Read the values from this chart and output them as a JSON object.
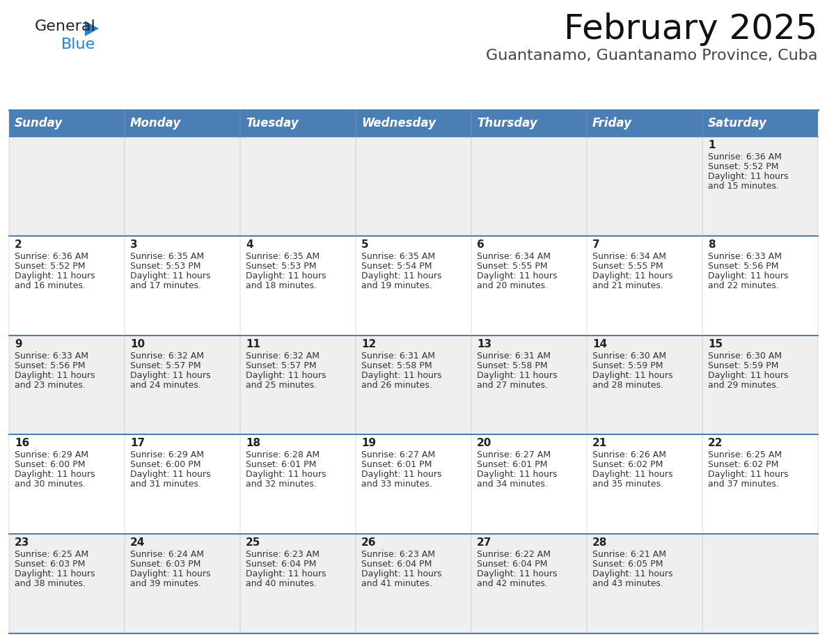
{
  "title": "February 2025",
  "subtitle": "Guantanamo, Guantanamo Province, Cuba",
  "header_bg": "#4a7eb5",
  "header_text": "#ffffff",
  "header_days": [
    "Sunday",
    "Monday",
    "Tuesday",
    "Wednesday",
    "Thursday",
    "Friday",
    "Saturday"
  ],
  "odd_row_bg": "#efefef",
  "even_row_bg": "#ffffff",
  "cell_text_color": "#333333",
  "day_num_color": "#222222",
  "line_color": "#4a7eb5",
  "logo_general_color": "#222222",
  "logo_blue_color": "#2a80c8",
  "title_fontsize": 36,
  "subtitle_fontsize": 16,
  "header_fontsize": 12,
  "day_num_fontsize": 11,
  "cell_fontsize": 9,
  "calendar_data": [
    {
      "day": 1,
      "col": 6,
      "row": 0,
      "sunrise": "6:36 AM",
      "sunset": "5:52 PM",
      "daylight": "11 hours and 15 minutes."
    },
    {
      "day": 2,
      "col": 0,
      "row": 1,
      "sunrise": "6:36 AM",
      "sunset": "5:52 PM",
      "daylight": "11 hours and 16 minutes."
    },
    {
      "day": 3,
      "col": 1,
      "row": 1,
      "sunrise": "6:35 AM",
      "sunset": "5:53 PM",
      "daylight": "11 hours and 17 minutes."
    },
    {
      "day": 4,
      "col": 2,
      "row": 1,
      "sunrise": "6:35 AM",
      "sunset": "5:53 PM",
      "daylight": "11 hours and 18 minutes."
    },
    {
      "day": 5,
      "col": 3,
      "row": 1,
      "sunrise": "6:35 AM",
      "sunset": "5:54 PM",
      "daylight": "11 hours and 19 minutes."
    },
    {
      "day": 6,
      "col": 4,
      "row": 1,
      "sunrise": "6:34 AM",
      "sunset": "5:55 PM",
      "daylight": "11 hours and 20 minutes."
    },
    {
      "day": 7,
      "col": 5,
      "row": 1,
      "sunrise": "6:34 AM",
      "sunset": "5:55 PM",
      "daylight": "11 hours and 21 minutes."
    },
    {
      "day": 8,
      "col": 6,
      "row": 1,
      "sunrise": "6:33 AM",
      "sunset": "5:56 PM",
      "daylight": "11 hours and 22 minutes."
    },
    {
      "day": 9,
      "col": 0,
      "row": 2,
      "sunrise": "6:33 AM",
      "sunset": "5:56 PM",
      "daylight": "11 hours and 23 minutes."
    },
    {
      "day": 10,
      "col": 1,
      "row": 2,
      "sunrise": "6:32 AM",
      "sunset": "5:57 PM",
      "daylight": "11 hours and 24 minutes."
    },
    {
      "day": 11,
      "col": 2,
      "row": 2,
      "sunrise": "6:32 AM",
      "sunset": "5:57 PM",
      "daylight": "11 hours and 25 minutes."
    },
    {
      "day": 12,
      "col": 3,
      "row": 2,
      "sunrise": "6:31 AM",
      "sunset": "5:58 PM",
      "daylight": "11 hours and 26 minutes."
    },
    {
      "day": 13,
      "col": 4,
      "row": 2,
      "sunrise": "6:31 AM",
      "sunset": "5:58 PM",
      "daylight": "11 hours and 27 minutes."
    },
    {
      "day": 14,
      "col": 5,
      "row": 2,
      "sunrise": "6:30 AM",
      "sunset": "5:59 PM",
      "daylight": "11 hours and 28 minutes."
    },
    {
      "day": 15,
      "col": 6,
      "row": 2,
      "sunrise": "6:30 AM",
      "sunset": "5:59 PM",
      "daylight": "11 hours and 29 minutes."
    },
    {
      "day": 16,
      "col": 0,
      "row": 3,
      "sunrise": "6:29 AM",
      "sunset": "6:00 PM",
      "daylight": "11 hours and 30 minutes."
    },
    {
      "day": 17,
      "col": 1,
      "row": 3,
      "sunrise": "6:29 AM",
      "sunset": "6:00 PM",
      "daylight": "11 hours and 31 minutes."
    },
    {
      "day": 18,
      "col": 2,
      "row": 3,
      "sunrise": "6:28 AM",
      "sunset": "6:01 PM",
      "daylight": "11 hours and 32 minutes."
    },
    {
      "day": 19,
      "col": 3,
      "row": 3,
      "sunrise": "6:27 AM",
      "sunset": "6:01 PM",
      "daylight": "11 hours and 33 minutes."
    },
    {
      "day": 20,
      "col": 4,
      "row": 3,
      "sunrise": "6:27 AM",
      "sunset": "6:01 PM",
      "daylight": "11 hours and 34 minutes."
    },
    {
      "day": 21,
      "col": 5,
      "row": 3,
      "sunrise": "6:26 AM",
      "sunset": "6:02 PM",
      "daylight": "11 hours and 35 minutes."
    },
    {
      "day": 22,
      "col": 6,
      "row": 3,
      "sunrise": "6:25 AM",
      "sunset": "6:02 PM",
      "daylight": "11 hours and 37 minutes."
    },
    {
      "day": 23,
      "col": 0,
      "row": 4,
      "sunrise": "6:25 AM",
      "sunset": "6:03 PM",
      "daylight": "11 hours and 38 minutes."
    },
    {
      "day": 24,
      "col": 1,
      "row": 4,
      "sunrise": "6:24 AM",
      "sunset": "6:03 PM",
      "daylight": "11 hours and 39 minutes."
    },
    {
      "day": 25,
      "col": 2,
      "row": 4,
      "sunrise": "6:23 AM",
      "sunset": "6:04 PM",
      "daylight": "11 hours and 40 minutes."
    },
    {
      "day": 26,
      "col": 3,
      "row": 4,
      "sunrise": "6:23 AM",
      "sunset": "6:04 PM",
      "daylight": "11 hours and 41 minutes."
    },
    {
      "day": 27,
      "col": 4,
      "row": 4,
      "sunrise": "6:22 AM",
      "sunset": "6:04 PM",
      "daylight": "11 hours and 42 minutes."
    },
    {
      "day": 28,
      "col": 5,
      "row": 4,
      "sunrise": "6:21 AM",
      "sunset": "6:05 PM",
      "daylight": "11 hours and 43 minutes."
    }
  ]
}
